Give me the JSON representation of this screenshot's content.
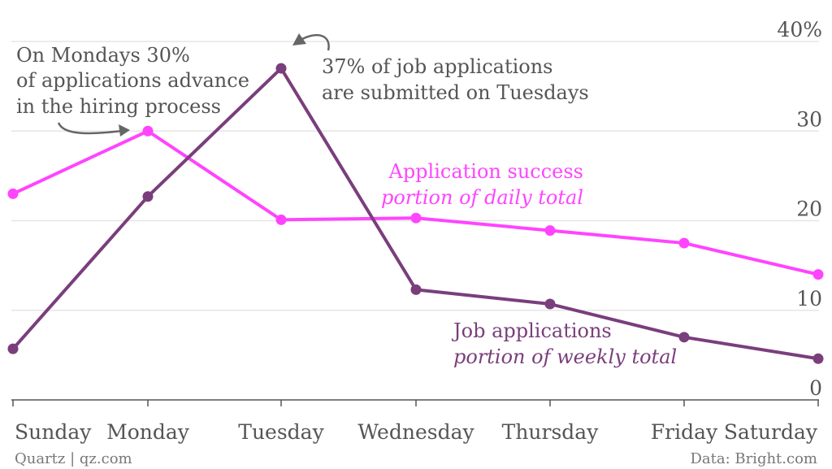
{
  "chart_data": {
    "type": "line",
    "categories": [
      "Sunday",
      "Monday",
      "Tuesday",
      "Wednesday",
      "Thursday",
      "Friday",
      "Saturday"
    ],
    "series": [
      {
        "name": "Application success",
        "subtitle": "portion of daily total",
        "color": "#ff44ff",
        "values": [
          23,
          30,
          20.1,
          20.3,
          18.9,
          17.5,
          14
        ]
      },
      {
        "name": "Job applications",
        "subtitle": "portion of weekly total",
        "color": "#7a3e7c",
        "values": [
          5.7,
          22.7,
          37,
          12.3,
          10.7,
          7,
          4.6
        ]
      }
    ],
    "ylim": [
      0,
      40
    ],
    "yticks": [
      {
        "value": 0,
        "label": "0"
      },
      {
        "value": 10,
        "label": "10"
      },
      {
        "value": 20,
        "label": "20"
      },
      {
        "value": 30,
        "label": "30"
      },
      {
        "value": 40,
        "label": "40%"
      }
    ],
    "annotations": {
      "monday": [
        "On Mondays 30%",
        "of applications advance",
        "in the hiring process"
      ],
      "tuesday": [
        "37% of job applications",
        "are submitted on Tuesdays"
      ]
    },
    "grid": true,
    "axis_position": "right"
  },
  "footer": {
    "source_left": "Quartz | qz.com",
    "source_right": "Data: Bright.com"
  },
  "colors": {
    "grid": "#e6e6e6",
    "axis": "#555555",
    "annotation_arrow": "#666666"
  }
}
